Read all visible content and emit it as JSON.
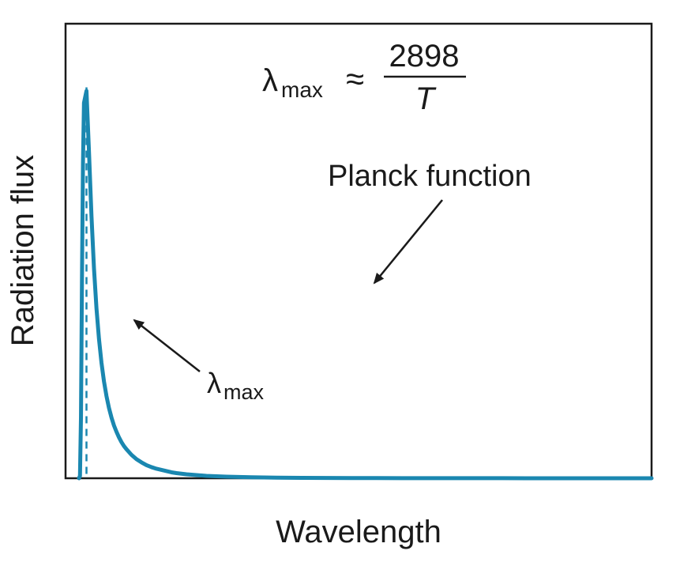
{
  "chart_data": {
    "type": "line",
    "title": "",
    "xlabel": "Wavelength",
    "ylabel": "Radiation flux",
    "grid": false,
    "legend": "none",
    "axes_ticks": false,
    "series": [
      {
        "name": "",
        "color": "#1a87b0",
        "x": [
          0.05,
          0.07,
          0.09,
          0.11,
          0.13,
          0.15,
          0.2,
          0.25,
          0.3,
          0.35,
          0.4,
          0.45,
          0.5,
          0.55,
          0.6,
          0.65,
          0.7,
          0.75,
          0.8,
          0.85,
          0.9,
          0.95,
          1.0,
          1.1,
          1.2,
          1.3,
          1.4,
          1.5,
          1.6,
          1.7,
          1.8,
          1.9,
          2.0,
          2.2,
          2.4,
          2.6,
          2.8,
          3.0,
          3.25,
          3.5,
          3.75,
          4.0,
          4.5,
          5.0,
          5.5,
          6.0,
          6.5,
          7.0,
          7.5,
          8.0,
          8.5,
          9.0,
          9.5,
          10.0,
          10.5,
          11.0,
          11.5
        ],
        "y": [
          0.0,
          0.006,
          0.154,
          0.505,
          0.794,
          0.946,
          0.976,
          0.823,
          0.661,
          0.529,
          0.428,
          0.351,
          0.291,
          0.244,
          0.207,
          0.177,
          0.153,
          0.133,
          0.117,
          0.103,
          0.091,
          0.081,
          0.073,
          0.059,
          0.048,
          0.04,
          0.033,
          0.028,
          0.024,
          0.021,
          0.018,
          0.015,
          0.013,
          0.01,
          0.008,
          0.006,
          0.005,
          0.004,
          0.0032,
          0.0025,
          0.002,
          0.0016,
          0.0011,
          0.0008,
          0.0006,
          0.00045,
          0.00035,
          0.00027,
          0.00022,
          0.00018,
          0.00014,
          0.00012,
          0.0001,
          8e-05,
          7e-05,
          6e-05,
          5e-05
        ]
      }
    ],
    "lambda_max_marker": {
      "x": 0.2,
      "label_main": "λ",
      "label_sub": "max"
    },
    "annotations": {
      "formula": {
        "lhs_main": "λ",
        "lhs_sub": "max",
        "relation": "≈",
        "numerator": "2898",
        "denominator": "T"
      },
      "curve_label": "Planck function"
    }
  }
}
